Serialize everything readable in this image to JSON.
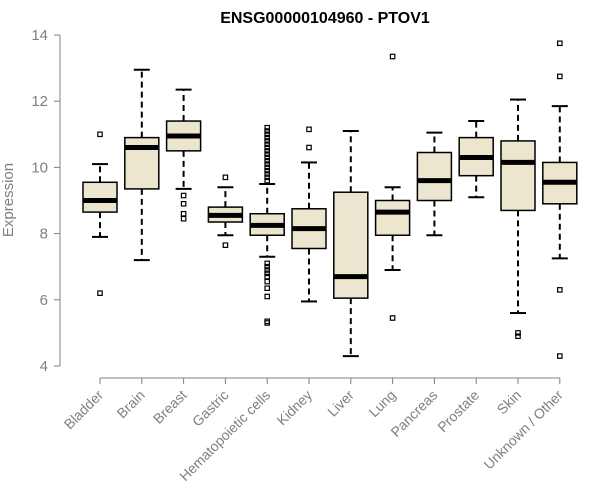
{
  "chart_data": {
    "type": "boxplot",
    "title": "ENSG00000104960 - PTOV1",
    "xlabel": "",
    "ylabel": "Expression",
    "ylim": [
      4,
      14
    ],
    "yticks": [
      4,
      6,
      8,
      10,
      12,
      14
    ],
    "box_fill": "#ede6cf",
    "categories": [
      "Bladder",
      "Brain",
      "Breast",
      "Gastric",
      "Hematopoietic cells",
      "Kidney",
      "Liver",
      "Lung",
      "Pancreas",
      "Prostate",
      "Skin",
      "Unknown / Other"
    ],
    "boxes": [
      {
        "whisker_low": 7.9,
        "q1": 8.65,
        "median": 9.0,
        "q3": 9.55,
        "whisker_high": 10.1,
        "outliers": [
          11.0,
          6.2
        ]
      },
      {
        "whisker_low": 7.2,
        "q1": 9.35,
        "median": 10.6,
        "q3": 10.9,
        "whisker_high": 12.95,
        "outliers": []
      },
      {
        "whisker_low": 9.35,
        "q1": 10.5,
        "median": 10.95,
        "q3": 11.4,
        "whisker_high": 12.35,
        "outliers": [
          9.15,
          8.9,
          8.6,
          8.45
        ]
      },
      {
        "whisker_low": 7.95,
        "q1": 8.35,
        "median": 8.55,
        "q3": 8.8,
        "whisker_high": 9.4,
        "outliers": [
          9.7,
          7.65
        ]
      },
      {
        "whisker_low": 7.3,
        "q1": 7.95,
        "median": 8.25,
        "q3": 8.6,
        "whisker_high": 9.5,
        "outliers": [
          9.6,
          9.7,
          9.8,
          9.9,
          10.0,
          10.1,
          10.2,
          10.3,
          10.4,
          10.5,
          10.6,
          10.7,
          10.8,
          10.9,
          11.0,
          11.1,
          11.2,
          7.1,
          7.0,
          6.9,
          6.8,
          6.7,
          6.55,
          6.35,
          6.1,
          5.35,
          5.3
        ]
      },
      {
        "whisker_low": 5.95,
        "q1": 7.55,
        "median": 8.15,
        "q3": 8.75,
        "whisker_high": 10.15,
        "outliers": [
          11.15,
          10.6
        ]
      },
      {
        "whisker_low": 4.3,
        "q1": 6.05,
        "median": 6.7,
        "q3": 9.25,
        "whisker_high": 11.1,
        "outliers": []
      },
      {
        "whisker_low": 6.9,
        "q1": 7.95,
        "median": 8.65,
        "q3": 9.0,
        "whisker_high": 9.4,
        "outliers": [
          13.35,
          5.45
        ]
      },
      {
        "whisker_low": 7.95,
        "q1": 9.0,
        "median": 9.6,
        "q3": 10.45,
        "whisker_high": 11.05,
        "outliers": []
      },
      {
        "whisker_low": 9.1,
        "q1": 9.75,
        "median": 10.3,
        "q3": 10.9,
        "whisker_high": 11.4,
        "outliers": []
      },
      {
        "whisker_low": 5.6,
        "q1": 8.7,
        "median": 10.15,
        "q3": 10.8,
        "whisker_high": 12.05,
        "outliers": [
          5.0,
          4.9
        ]
      },
      {
        "whisker_low": 7.25,
        "q1": 8.9,
        "median": 9.55,
        "q3": 10.15,
        "whisker_high": 11.85,
        "outliers": [
          13.75,
          12.75,
          6.3,
          4.3
        ]
      }
    ]
  }
}
